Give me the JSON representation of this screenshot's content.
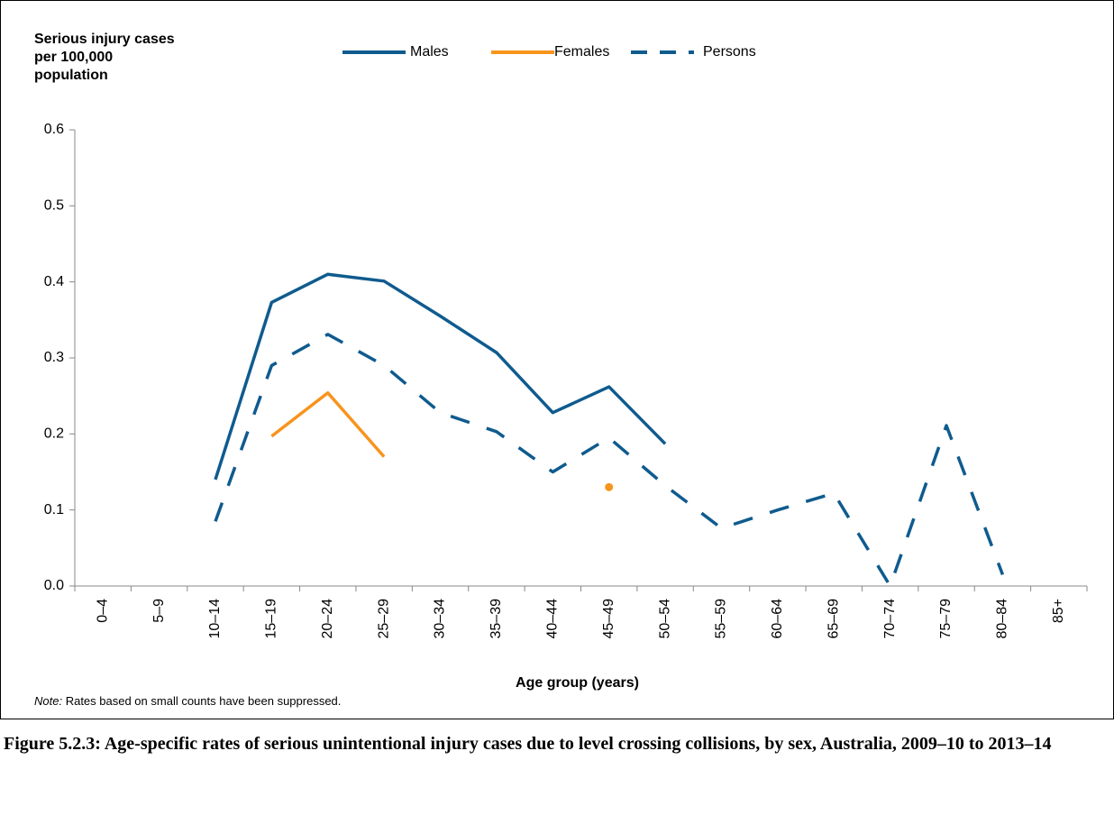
{
  "chart_data": {
    "type": "line",
    "y_label": "Serious injury cases per 100,000 population",
    "x_label": "Age group (years)",
    "note_label": "Note:",
    "note": "Rates based on small counts have been suppressed.",
    "caption": "Figure 5.2.3: Age-specific rates of serious unintentional injury cases due to level crossing collisions, by sex, Australia, 2009–10 to 2013–14",
    "categories": [
      "0–4",
      "5–9",
      "10–14",
      "15–19",
      "20–24",
      "25–29",
      "30–34",
      "35–39",
      "40–44",
      "45–49",
      "50–54",
      "55–59",
      "60–64",
      "65–69",
      "70–74",
      "75–79",
      "80–84",
      "85+"
    ],
    "series": [
      {
        "name": "Males",
        "color": "#0f5b8e",
        "dashed": false,
        "values": [
          null,
          null,
          0.14,
          0.373,
          0.41,
          0.401,
          0.355,
          0.307,
          0.228,
          0.262,
          0.187,
          null,
          null,
          null,
          null,
          null,
          null,
          null
        ]
      },
      {
        "name": "Females",
        "color": "#f7941d",
        "dashed": false,
        "values": [
          null,
          null,
          null,
          0.197,
          0.254,
          0.17,
          null,
          null,
          null,
          0.13,
          null,
          null,
          null,
          null,
          null,
          null,
          null,
          null
        ]
      },
      {
        "name": "Persons",
        "color": "#0f5b8e",
        "dashed": true,
        "values": [
          null,
          null,
          0.085,
          0.29,
          0.331,
          0.29,
          0.228,
          0.203,
          0.15,
          0.195,
          0.132,
          0.076,
          0.1,
          0.122,
          0,
          0.211,
          0.015,
          null
        ]
      }
    ],
    "ylim": [
      0,
      0.6
    ],
    "yticks": [
      {
        "value": 0,
        "label": "0.0"
      },
      0.1,
      0.2,
      0.3,
      0.4,
      0.5,
      0.6
    ]
  }
}
